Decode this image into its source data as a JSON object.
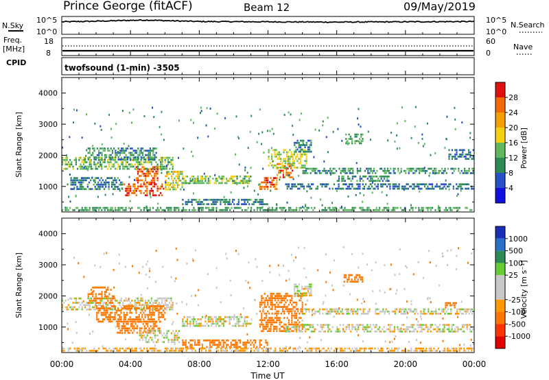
{
  "header": {
    "station": "Prince George (fitACF)",
    "beam": "Beam 12",
    "date": "09/May/2019"
  },
  "noise_panel": {
    "left_label": "N.Sky",
    "left_ticks": [
      "10^5",
      "10^0"
    ],
    "right_label": "N.Search",
    "right_ticks": [
      "10^5",
      "10^0"
    ]
  },
  "freq_panel": {
    "left_label_1": "Freq.",
    "left_label_2": "[MHz]",
    "left_ticks": [
      "18",
      "8"
    ],
    "right_label": "Nave",
    "right_ticks": [
      "60",
      "0"
    ],
    "cpid_label": "CPID"
  },
  "cpid_text": "twofsound (1-min) -3505",
  "x_axis": {
    "ticks": [
      "00:00",
      "04:00",
      "08:00",
      "12:00",
      "16:00",
      "20:00",
      "00:00"
    ],
    "label": "Time UT"
  },
  "power_panel": {
    "ylabel": "Slant Range [km]",
    "y_ticks": [
      "4000",
      "3000",
      "2000",
      "1000"
    ],
    "colorbar_label": "Power [dB]",
    "colorbar_ticks": [
      "28",
      "24",
      "20",
      "16",
      "12",
      "8",
      "4"
    ]
  },
  "velocity_panel": {
    "ylabel": "Slant Range [km]",
    "y_ticks": [
      "4000",
      "3000",
      "2000",
      "1000"
    ],
    "colorbar_label": "Velocity [m s⁻¹]",
    "colorbar_ticks": [
      "1000",
      "500",
      "100",
      "25",
      "-25",
      "-100",
      "-500",
      "-1000"
    ]
  },
  "colors": {
    "power_scale": [
      "#1010e0",
      "#2850c8",
      "#2e8b57",
      "#5fb85f",
      "#f5d010",
      "#f5a000",
      "#f56a00",
      "#e01010"
    ],
    "velocity_scale": [
      "#1a2fb8",
      "#2a6fc8",
      "#2e8b57",
      "#66cc33",
      "#c8c8c8",
      "#c8c8c8",
      "#ff9900",
      "#ff7700",
      "#ff3300",
      "#e00000"
    ]
  },
  "chart_data": [
    {
      "type": "line",
      "name": "noise",
      "x": [
        0,
        2,
        4,
        5,
        6,
        8,
        12,
        16,
        20,
        24
      ],
      "y": [
        4.2,
        4.4,
        4.7,
        4.8,
        4.6,
        4.3,
        4.2,
        4.1,
        4.2,
        4.3
      ],
      "xlim": [
        0,
        24
      ],
      "ylim": [
        0,
        6
      ]
    },
    {
      "type": "heatmap",
      "name": "power",
      "xlim": [
        0,
        24
      ],
      "ylim": [
        180,
        4500
      ],
      "z_ticks": [
        4,
        8,
        12,
        16,
        20,
        24,
        28
      ],
      "regions": [
        {
          "t0": 0.0,
          "t1": 6.5,
          "r0": 1550,
          "r1": 1950,
          "p": 14
        },
        {
          "t0": 1.5,
          "t1": 5.5,
          "r0": 1850,
          "r1": 2250,
          "p": 10
        },
        {
          "t0": 3.6,
          "t1": 5.9,
          "r0": 700,
          "r1": 1100,
          "p": 27
        },
        {
          "t0": 4.3,
          "t1": 5.6,
          "r0": 1100,
          "r1": 1650,
          "p": 26
        },
        {
          "t0": 6.0,
          "t1": 7.0,
          "r0": 900,
          "r1": 1500,
          "p": 18
        },
        {
          "t0": 0.5,
          "t1": 3.5,
          "r0": 900,
          "r1": 1300,
          "p": 9
        },
        {
          "t0": 7.0,
          "t1": 11.0,
          "r0": 1100,
          "r1": 1350,
          "p": 14
        },
        {
          "t0": 7.0,
          "t1": 12.0,
          "r0": 400,
          "r1": 600,
          "p": 9
        },
        {
          "t0": 11.5,
          "t1": 12.5,
          "r0": 900,
          "r1": 1300,
          "p": 27
        },
        {
          "t0": 12.5,
          "t1": 13.4,
          "r0": 1300,
          "r1": 1750,
          "p": 26
        },
        {
          "t0": 12.0,
          "t1": 14.2,
          "r0": 1600,
          "r1": 2200,
          "p": 16
        },
        {
          "t0": 13.5,
          "t1": 14.5,
          "r0": 2100,
          "r1": 2500,
          "p": 9
        },
        {
          "t0": 14.0,
          "t1": 24.0,
          "r0": 1400,
          "r1": 1600,
          "p": 11
        },
        {
          "t0": 13.0,
          "t1": 24.0,
          "r0": 900,
          "r1": 1100,
          "p": 8
        },
        {
          "t0": 16.0,
          "t1": 19.0,
          "r0": 1150,
          "r1": 1350,
          "p": 10
        },
        {
          "t0": 16.5,
          "t1": 17.5,
          "r0": 2400,
          "r1": 2700,
          "p": 12
        },
        {
          "t0": 22.5,
          "t1": 24.0,
          "r0": 1900,
          "r1": 2200,
          "p": 8
        },
        {
          "t0": 0.0,
          "t1": 24.0,
          "r0": 200,
          "r1": 340,
          "p": 12
        }
      ]
    },
    {
      "type": "heatmap",
      "name": "velocity",
      "xlim": [
        0,
        24
      ],
      "ylim": [
        180,
        4500
      ],
      "z_ticks": [
        1000,
        500,
        100,
        25,
        -25,
        -100,
        -500,
        -1000
      ],
      "regions": [
        {
          "t0": 0.0,
          "t1": 6.5,
          "r0": 1550,
          "r1": 1950,
          "v": 0
        },
        {
          "t0": 2.0,
          "t1": 6.0,
          "r0": 1200,
          "r1": 1700,
          "v": -180
        },
        {
          "t0": 3.2,
          "t1": 5.7,
          "r0": 800,
          "r1": 1200,
          "v": -150
        },
        {
          "t0": 1.5,
          "t1": 3.0,
          "r0": 1800,
          "r1": 2300,
          "v": -200
        },
        {
          "t0": 4.5,
          "t1": 6.8,
          "r0": 500,
          "r1": 900,
          "v": 0
        },
        {
          "t0": 7.0,
          "t1": 11.0,
          "r0": 1000,
          "r1": 1350,
          "v": 0
        },
        {
          "t0": 7.0,
          "t1": 12.0,
          "r0": 380,
          "r1": 600,
          "v": -150
        },
        {
          "t0": 11.5,
          "t1": 14.0,
          "r0": 900,
          "r1": 2100,
          "v": -220
        },
        {
          "t0": 13.5,
          "t1": 14.5,
          "r0": 2000,
          "r1": 2400,
          "v": 0
        },
        {
          "t0": 14.0,
          "t1": 24.0,
          "r0": 1400,
          "r1": 1600,
          "v": 0
        },
        {
          "t0": 13.0,
          "t1": 24.0,
          "r0": 850,
          "r1": 1100,
          "v": 0
        },
        {
          "t0": 16.4,
          "t1": 17.5,
          "r0": 2450,
          "r1": 2700,
          "v": -150
        },
        {
          "t0": 22.3,
          "t1": 23.0,
          "r0": 1650,
          "r1": 1800,
          "v": -150
        },
        {
          "t0": 0.0,
          "t1": 24.0,
          "r0": 200,
          "r1": 340,
          "v": -40
        }
      ]
    }
  ]
}
